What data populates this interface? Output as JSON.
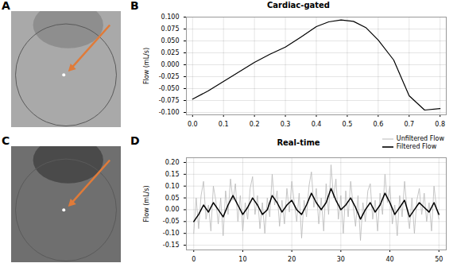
{
  "images": [
    {
      "panel": "A"
    },
    {
      "panel": "C"
    }
  ],
  "chart_data": [
    {
      "panel": "B",
      "type": "line",
      "title": "Cardiac-gated",
      "y_label": "Flow (mL/s)",
      "x": [
        0,
        0.05,
        0.1,
        0.15,
        0.2,
        0.25,
        0.3,
        0.35,
        0.4,
        0.44,
        0.48,
        0.52,
        0.56,
        0.6,
        0.65,
        0.7,
        0.75,
        0.8
      ],
      "values": [
        -0.072,
        -0.055,
        -0.035,
        -0.015,
        0.005,
        0.022,
        0.037,
        0.058,
        0.08,
        0.09,
        0.094,
        0.091,
        0.078,
        0.052,
        0.01,
        -0.065,
        -0.095,
        -0.092
      ],
      "color": "#000000",
      "xlim": [
        -0.02,
        0.82
      ],
      "xticks": [
        {
          "value": 0,
          "label": "0.0"
        },
        0.1,
        0.2,
        0.3,
        0.4,
        0.5,
        0.6,
        0.7,
        0.8
      ],
      "ylim": [
        -0.105,
        0.1
      ],
      "yticks": [
        {
          "value": -0.1,
          "label": "-0.100"
        },
        -0.075,
        {
          "value": -0.05,
          "label": "-0.050"
        },
        -0.025,
        {
          "value": 0,
          "label": "0.000"
        },
        0.025,
        {
          "value": 0.05,
          "label": "0.050"
        },
        0.075,
        {
          "value": 0.1,
          "label": "0.100"
        }
      ],
      "grid": true
    },
    {
      "panel": "D",
      "type": "line",
      "title": "Real-time",
      "y_label": "Flow (mL/s)",
      "series": [
        {
          "name": "Unfiltered Flow",
          "color": "#b8b8b8",
          "x": [
            0,
            0.5,
            1,
            1.5,
            2,
            2.5,
            3,
            3.5,
            4,
            4.5,
            5,
            5.5,
            6,
            6.5,
            7,
            7.5,
            8,
            8.5,
            9,
            9.5,
            10,
            10.5,
            11,
            11.5,
            12,
            12.5,
            13,
            13.5,
            14,
            14.5,
            15,
            15.5,
            16,
            16.5,
            17,
            17.5,
            18,
            18.5,
            19,
            19.5,
            20,
            20.5,
            21,
            21.5,
            22,
            22.5,
            23,
            23.5,
            24,
            24.5,
            25,
            25.5,
            26,
            26.5,
            27,
            27.5,
            28,
            28.5,
            29,
            29.5,
            30,
            30.5,
            31,
            31.5,
            32,
            32.5,
            33,
            33.5,
            34,
            34.5,
            35,
            35.5,
            36,
            36.5,
            37,
            37.5,
            38,
            38.5,
            39,
            39.5,
            40,
            40.5,
            41,
            41.5,
            42,
            42.5,
            43,
            43.5,
            44,
            44.5,
            45,
            45.5,
            46,
            46.5,
            47,
            47.5,
            48,
            48.5,
            49,
            49.5,
            50
          ],
          "values": [
            -0.1,
            0.05,
            -0.08,
            0.06,
            0.12,
            -0.04,
            0.02,
            -0.09,
            0.1,
            0.04,
            -0.06,
            0.05,
            -0.11,
            0.08,
            -0.02,
            0.13,
            0.04,
            0.11,
            -0.05,
            0.06,
            -0.09,
            0.03,
            -0.04,
            0.09,
            0.14,
            -0.02,
            0.06,
            -0.08,
            0.03,
            -0.1,
            0.05,
            -0.03,
            0.15,
            0.02,
            0.08,
            -0.07,
            0.04,
            -0.06,
            0.09,
            -0.01,
            0.12,
            0.03,
            -0.05,
            0.07,
            -0.12,
            0.04,
            -0.03,
            0.1,
            0.16,
            0.01,
            0.09,
            -0.06,
            0.05,
            -0.09,
            0.11,
            -0.02,
            0.19,
            0.05,
            0.13,
            -0.04,
            0.06,
            -0.1,
            0.08,
            -0.03,
            0.12,
            0.02,
            -0.07,
            0.06,
            -0.13,
            0.03,
            -0.05,
            0.08,
            0.11,
            -0.04,
            0.04,
            -0.09,
            0.07,
            -0.02,
            0.15,
            0.03,
            0.1,
            -0.06,
            0.02,
            -0.11,
            0.06,
            -0.03,
            0.12,
            0,
            -0.08,
            0.05,
            -0.1,
            0.04,
            0.09,
            -0.02,
            0.07,
            -0.05,
            0.03,
            -0.09,
            0.1,
            0.01,
            -0.04
          ]
        },
        {
          "name": "Filtered Flow",
          "color": "#000000",
          "x": [
            0,
            1,
            2,
            3,
            4,
            5,
            6,
            7,
            8,
            9,
            10,
            11,
            12,
            13,
            14,
            15,
            16,
            17,
            18,
            19,
            20,
            21,
            22,
            23,
            24,
            25,
            26,
            27,
            28,
            29,
            30,
            31,
            32,
            33,
            34,
            35,
            36,
            37,
            38,
            39,
            40,
            41,
            42,
            43,
            44,
            45,
            46,
            47,
            48,
            49,
            50
          ],
          "values": [
            -0.05,
            -0.02,
            0.02,
            -0.01,
            0.03,
            0,
            -0.03,
            0.02,
            0.06,
            0.02,
            -0.02,
            0.01,
            0.05,
            0.02,
            -0.02,
            0,
            0.06,
            0.03,
            -0.01,
            0.02,
            0.04,
            0,
            -0.02,
            0.02,
            0.07,
            0.03,
            0,
            0.03,
            0.09,
            0.04,
            0,
            0.02,
            0.05,
            0.01,
            -0.04,
            0,
            0.03,
            -0.01,
            0.02,
            0.07,
            0.03,
            -0.02,
            0.01,
            0.04,
            -0.03,
            0,
            0.03,
            0.01,
            -0.01,
            0.03,
            -0.02
          ]
        }
      ],
      "xlim": [
        -1.5,
        51.5
      ],
      "xticks": [
        0,
        10,
        20,
        30,
        40,
        50
      ],
      "ylim": [
        -0.17,
        0.22
      ],
      "yticks": [
        -0.15,
        {
          "value": -0.1,
          "label": "-0.10"
        },
        -0.05,
        {
          "value": 0,
          "label": "0.00"
        },
        0.05,
        {
          "value": 0.1,
          "label": "0.10"
        },
        0.15,
        {
          "value": 0.2,
          "label": "0.20"
        }
      ],
      "grid": true,
      "legend": "top right"
    }
  ]
}
